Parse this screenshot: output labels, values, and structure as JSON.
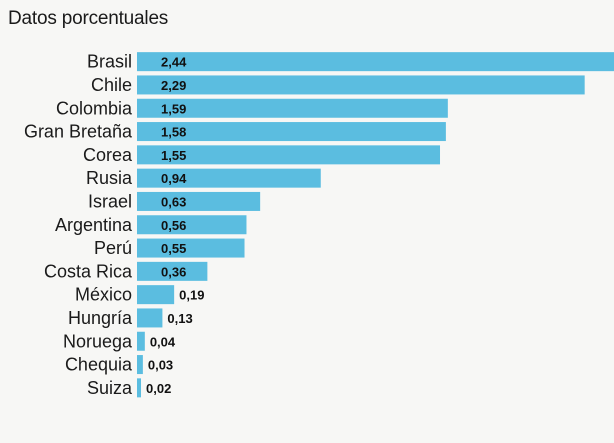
{
  "chart_data": {
    "type": "bar",
    "orientation": "horizontal",
    "title": "Datos porcentuales",
    "categories": [
      "Brasil",
      "Chile",
      "Colombia",
      "Gran Bretaña",
      "Corea",
      "Rusia",
      "Israel",
      "Argentina",
      "Perú",
      "Costa Rica",
      "México",
      "Hungría",
      "Noruega",
      "Chequia",
      "Suiza"
    ],
    "values": [
      2.44,
      2.29,
      1.59,
      1.58,
      1.55,
      0.94,
      0.63,
      0.56,
      0.55,
      0.36,
      0.19,
      0.13,
      0.04,
      0.03,
      0.02
    ],
    "value_labels": [
      "2,44",
      "2,29",
      "1,59",
      "1,58",
      "1,55",
      "0,94",
      "0,63",
      "0,56",
      "0,55",
      "0,36",
      "0,19",
      "0,13",
      "0,04",
      "0,03",
      "0,02"
    ],
    "xlim": [
      0,
      2.44
    ],
    "bar_color": "#5bbde0",
    "grid": false,
    "legend": "none"
  }
}
